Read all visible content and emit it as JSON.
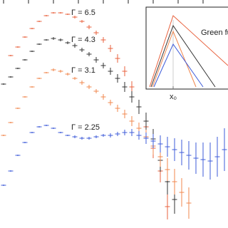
{
  "chart_data": {
    "type": "errorbar",
    "xlim": [
      0,
      320
    ],
    "ylim": [
      0,
      320
    ],
    "xticks": [
      5,
      40,
      75,
      110,
      145,
      180,
      215,
      250,
      285
    ],
    "series": [
      {
        "name": "Γ = 6.5",
        "color": "#e8603c",
        "x": [
          15,
          25,
          35,
          45,
          55,
          65,
          75,
          85,
          95,
          105,
          115,
          125,
          135,
          145,
          155,
          165,
          175,
          185,
          195,
          205,
          215,
          225,
          235
        ],
        "values": [
          242,
          254,
          268,
          280,
          290,
          298,
          302,
          302,
          300,
          296,
          290,
          282,
          274,
          264,
          252,
          238,
          220,
          198,
          170,
          142,
          112,
          80,
          30
        ],
        "errors": [
          1,
          1,
          1,
          1,
          1,
          1,
          1,
          1,
          1,
          2,
          2,
          3,
          3,
          4,
          5,
          6,
          7,
          8,
          10,
          12,
          14,
          16,
          18
        ]
      },
      {
        "name": "Γ = 4.3",
        "color": "#333333",
        "x": [
          5,
          15,
          25,
          35,
          45,
          55,
          65,
          75,
          85,
          95,
          105,
          115,
          125,
          135,
          145,
          155,
          165,
          175,
          185,
          195,
          205,
          215,
          225,
          235,
          245
        ],
        "values": [
          202,
          212,
          224,
          236,
          248,
          258,
          264,
          266,
          264,
          260,
          256,
          250,
          244,
          236,
          228,
          220,
          210,
          198,
          184,
          170,
          150,
          125,
          95,
          65,
          40
        ],
        "errors": [
          1,
          1,
          1,
          1,
          1,
          1,
          1,
          2,
          2,
          2,
          3,
          3,
          3,
          4,
          4,
          5,
          6,
          7,
          8,
          10,
          12,
          14,
          16,
          18,
          20
        ]
      },
      {
        "name": "Γ = 3.1",
        "color": "#f0874e",
        "x": [
          5,
          15,
          25,
          35,
          45,
          55,
          65,
          75,
          85,
          95,
          105,
          115,
          125,
          135,
          145,
          155,
          165,
          175,
          185,
          195,
          205,
          215,
          225,
          235,
          245,
          255,
          265
        ],
        "values": [
          130,
          148,
          168,
          184,
          198,
          210,
          218,
          222,
          220,
          216,
          210,
          204,
          198,
          192,
          184,
          176,
          168,
          160,
          150,
          140,
          128,
          115,
          100,
          82,
          65,
          50,
          35
        ],
        "errors": [
          1,
          1,
          1,
          1,
          1,
          1,
          1,
          2,
          2,
          2,
          2,
          3,
          3,
          3,
          4,
          4,
          5,
          6,
          7,
          8,
          10,
          12,
          14,
          16,
          18,
          20,
          22
        ]
      },
      {
        "name": "Γ = 2.25",
        "color": "#3d5bd9",
        "x": [
          5,
          15,
          25,
          35,
          45,
          55,
          65,
          75,
          85,
          95,
          105,
          115,
          125,
          135,
          145,
          155,
          165,
          175,
          185,
          195,
          205,
          215,
          225,
          235,
          245,
          255,
          265,
          275,
          285,
          295,
          305,
          315
        ],
        "values": [
          60,
          80,
          102,
          120,
          134,
          142,
          144,
          140,
          134,
          130,
          128,
          126,
          126,
          128,
          130,
          130,
          132,
          134,
          134,
          130,
          126,
          122,
          118,
          114,
          110,
          106,
          102,
          98,
          96,
          94,
          100,
          110
        ],
        "errors": [
          1,
          1,
          1,
          1,
          1,
          1,
          1,
          1,
          1,
          1,
          2,
          2,
          2,
          2,
          2,
          3,
          3,
          4,
          5,
          6,
          8,
          10,
          12,
          14,
          16,
          18,
          20,
          22,
          24,
          26,
          28,
          30
        ]
      }
    ],
    "inset": {
      "label": "Green fun",
      "xlabel": "x₀"
    }
  }
}
